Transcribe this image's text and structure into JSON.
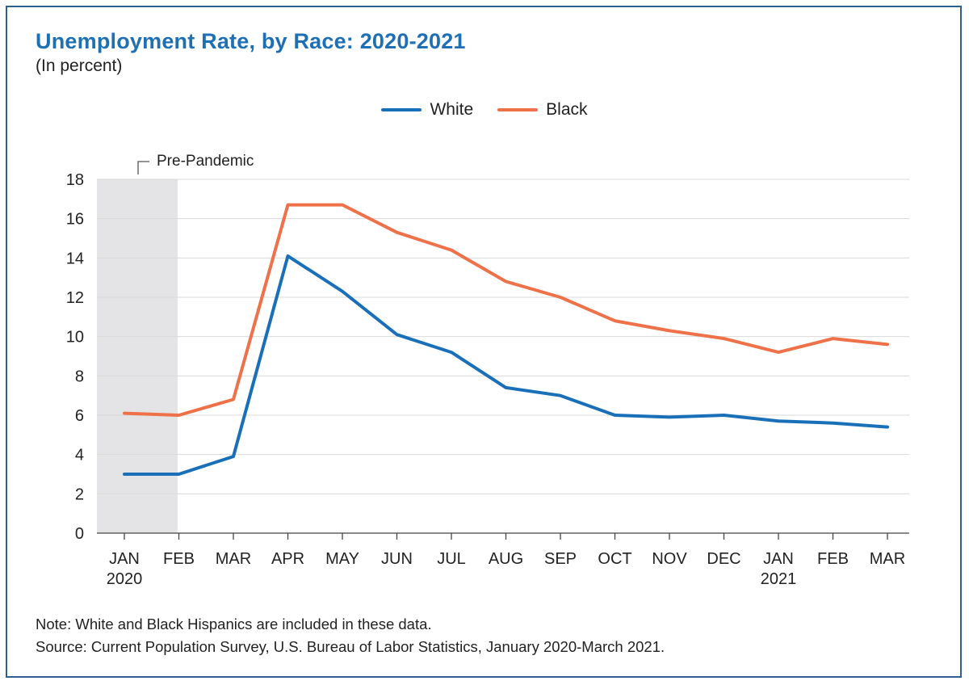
{
  "chart_data": {
    "type": "line",
    "title": "Unemployment Rate, by Race: 2020-2021",
    "subtitle": "(In percent)",
    "categories": [
      "JAN",
      "FEB",
      "MAR",
      "APR",
      "MAY",
      "JUN",
      "JUL",
      "AUG",
      "SEP",
      "OCT",
      "NOV",
      "DEC",
      "JAN",
      "FEB",
      "MAR"
    ],
    "category_sublabels": [
      "2020",
      "",
      "",
      "",
      "",
      "",
      "",
      "",
      "",
      "",
      "",
      "",
      "2021",
      "",
      ""
    ],
    "series": [
      {
        "name": "White",
        "color": "#1a70b8",
        "values": [
          3.0,
          3.0,
          3.9,
          14.1,
          12.3,
          10.1,
          9.2,
          7.4,
          7.0,
          6.0,
          5.9,
          6.0,
          5.7,
          5.6,
          5.4
        ]
      },
      {
        "name": "Black",
        "color": "#ee7149",
        "values": [
          6.1,
          6.0,
          6.8,
          16.7,
          16.7,
          15.3,
          14.4,
          12.8,
          12.0,
          10.8,
          10.3,
          9.9,
          9.2,
          9.9,
          9.6
        ]
      }
    ],
    "ylim": [
      0,
      18
    ],
    "yticks": [
      0,
      2,
      4,
      6,
      8,
      10,
      12,
      14,
      16,
      18
    ],
    "grid": true,
    "legend_position": "top-center",
    "shaded_region": {
      "label": "Pre-Pandemic",
      "from": "JAN 2020",
      "to": "FEB 2020",
      "color": "#e4e4e6"
    }
  },
  "notes": {
    "note": "Note: White and Black Hispanics are included in these data.",
    "source": "Source: Current Population Survey, U.S. Bureau of Labor Statistics, January 2020-March 2021."
  },
  "colors": {
    "title": "#1f6fb5",
    "border": "#2f5f8f",
    "grid": "#d9d9d9"
  }
}
